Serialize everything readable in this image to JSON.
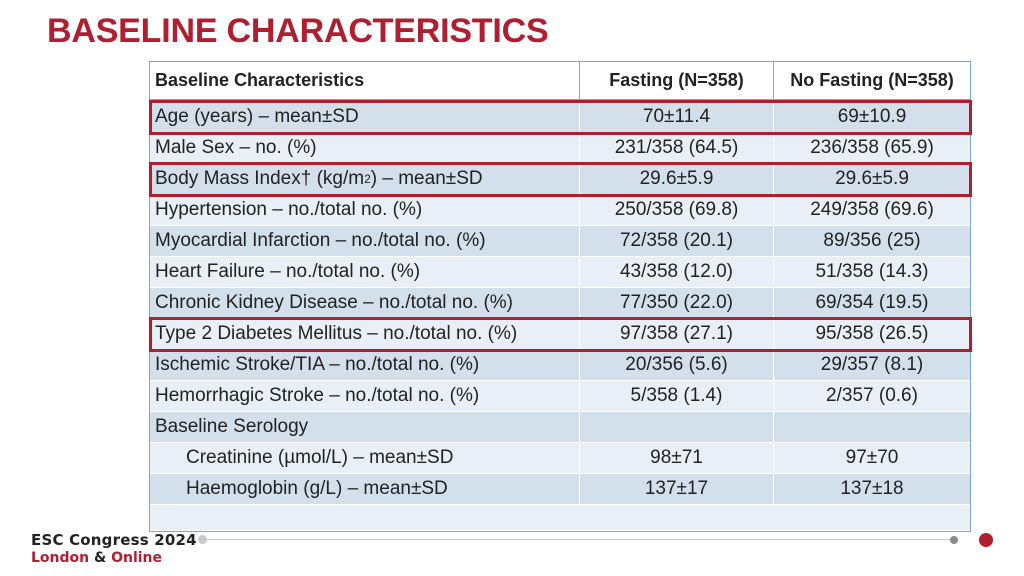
{
  "title": "BASELINE CHARACTERISTICS",
  "table": {
    "headers": [
      "Baseline Characteristics",
      "Fasting (N=358)",
      "No Fasting (N=358)"
    ],
    "rows": [
      {
        "label": "Age (years) – mean±SD",
        "fasting": "70±11.4",
        "no_fasting": "69±10.9"
      },
      {
        "label": "Male Sex – no. (%)",
        "fasting": "231/358 (64.5)",
        "no_fasting": "236/358 (65.9)"
      },
      {
        "label_pre": "Body Mass Index† (kg/m",
        "label_sup": "2",
        "label_post": ") – mean±SD",
        "fasting": "29.6±5.9",
        "no_fasting": "29.6±5.9"
      },
      {
        "label": "Hypertension – no./total no. (%)",
        "fasting": "250/358 (69.8)",
        "no_fasting": "249/358 (69.6)"
      },
      {
        "label": "Myocardial Infarction – no./total no. (%)",
        "fasting": "72/358 (20.1)",
        "no_fasting": "89/356 (25)"
      },
      {
        "label": "Heart Failure – no./total no. (%)",
        "fasting": "43/358 (12.0)",
        "no_fasting": "51/358 (14.3)"
      },
      {
        "label": "Chronic Kidney Disease – no./total no. (%)",
        "fasting": "77/350 (22.0)",
        "no_fasting": "69/354 (19.5)"
      },
      {
        "label": "Type 2 Diabetes Mellitus – no./total no. (%)",
        "fasting": "97/358 (27.1)",
        "no_fasting": "95/358 (26.5)"
      },
      {
        "label": "Ischemic Stroke/TIA – no./total no. (%)",
        "fasting": "20/356 (5.6)",
        "no_fasting": "29/357 (8.1)"
      },
      {
        "label": "Hemorrhagic Stroke – no./total no. (%)",
        "fasting": "5/358 (1.4)",
        "no_fasting": "2/357 (0.6)"
      },
      {
        "label": "Baseline Serology",
        "fasting": "",
        "no_fasting": ""
      },
      {
        "label": "Creatinine (µmol/L) – mean±SD",
        "fasting": "98±71",
        "no_fasting": "97±70"
      },
      {
        "label": "Haemoglobin (g/L) – mean±SD",
        "fasting": "137±17",
        "no_fasting": "137±18"
      }
    ]
  },
  "footer": {
    "congress_name": "ESC Congress 2024",
    "location_city": "London",
    "location_amp": "&",
    "location_online": "Online"
  },
  "colors": {
    "accent": "#b01e2f",
    "row_odd": "#d3dfeb",
    "row_even": "#e9eff6",
    "table_border": "#7aa9c9"
  }
}
